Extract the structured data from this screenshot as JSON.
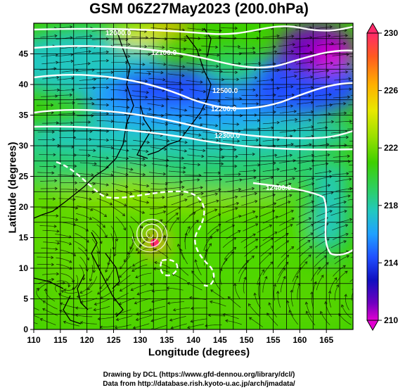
{
  "title": "GSM 06Z27May2023 (200.0hPa)",
  "x_axis_title": "Longitude (degrees)",
  "y_axis_title": "Latitude (degrees)",
  "x_ticks": [
    "110",
    "115",
    "120",
    "125",
    "130",
    "135",
    "140",
    "145",
    "150",
    "155",
    "160",
    "165"
  ],
  "y_ticks": [
    "0",
    "5",
    "10",
    "15",
    "20",
    "25",
    "30",
    "35",
    "40",
    "45"
  ],
  "colorbar_ticks": [
    "230",
    "226",
    "222",
    "218",
    "214",
    "210"
  ],
  "colorbar_colors": [
    "#ff2a6a",
    "#ff5a20",
    "#ffb000",
    "#e8e800",
    "#9be000",
    "#3ed000",
    "#2ccf6a",
    "#22c8c0",
    "#20a0ff",
    "#2050ff",
    "#1010c0",
    "#7000c0",
    "#e000d0"
  ],
  "contour_labels": [
    "12000.0",
    "12100.0",
    "12200.0",
    "12300.0",
    "12400.0",
    "12500.0"
  ],
  "credit_line1": "Drawing by DCL (https://www.gfd-dennou.org/library/dcl/)",
  "credit_line2": "Data from http://database.rish.kyoto-u.ac.jp/arch/jmadata/"
}
